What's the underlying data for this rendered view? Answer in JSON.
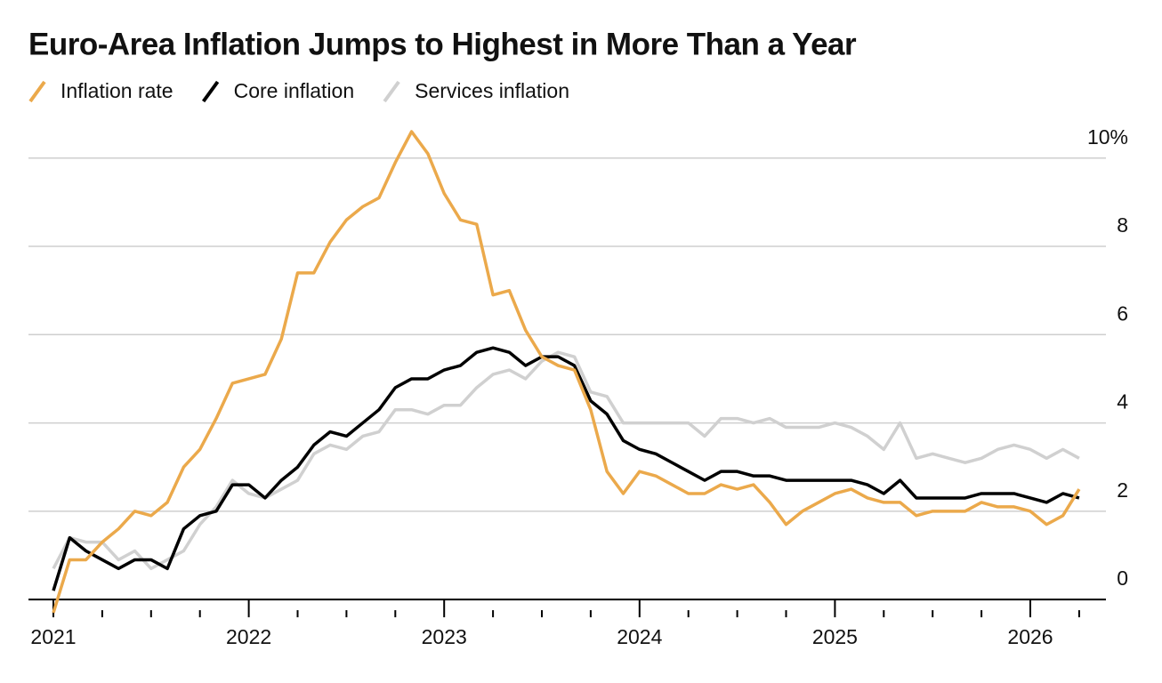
{
  "chart_data": {
    "type": "line",
    "title": "Euro-Area Inflation Jumps to Highest in More Than a Year",
    "categories": [
      "2021",
      null,
      null,
      null,
      null,
      null,
      null,
      null,
      null,
      null,
      null,
      null,
      "2022",
      null,
      null,
      null,
      null,
      null,
      null,
      null,
      null,
      null,
      null,
      null,
      "2023",
      null,
      null,
      null,
      null,
      null,
      null,
      null,
      null,
      null,
      null,
      null,
      "2024",
      null,
      null,
      null,
      null,
      null,
      null,
      null,
      null,
      null,
      null,
      null,
      "2025",
      null,
      null,
      null,
      null,
      null,
      null,
      null,
      null,
      null,
      null,
      null,
      "2026",
      null,
      null,
      null
    ],
    "series": [
      {
        "name": "Inflation rate",
        "color": "#eba94b",
        "values": [
          -0.3,
          0.9,
          0.9,
          1.3,
          1.6,
          2.0,
          1.9,
          2.2,
          3.0,
          3.4,
          4.1,
          4.9,
          5.0,
          5.1,
          5.9,
          7.4,
          7.4,
          8.1,
          8.6,
          8.9,
          9.1,
          9.9,
          10.6,
          10.1,
          9.2,
          8.6,
          8.5,
          6.9,
          7.0,
          6.1,
          5.5,
          5.3,
          5.2,
          4.3,
          2.9,
          2.4,
          2.9,
          2.8,
          2.6,
          2.4,
          2.4,
          2.6,
          2.5,
          2.6,
          2.2,
          1.7,
          2.0,
          2.2,
          2.4,
          2.5,
          2.3,
          2.2,
          2.2,
          1.9,
          2.0,
          2.0,
          2.0,
          2.2,
          2.1,
          2.1,
          2.0,
          1.7,
          1.9,
          2.5
        ]
      },
      {
        "name": "Core inflation",
        "color": "#000000",
        "values": [
          0.2,
          1.4,
          1.1,
          0.9,
          0.7,
          0.9,
          0.9,
          0.7,
          1.6,
          1.9,
          2.0,
          2.6,
          2.6,
          2.3,
          2.7,
          3.0,
          3.5,
          3.8,
          3.7,
          4.0,
          4.3,
          4.8,
          5.0,
          5.0,
          5.2,
          5.3,
          5.6,
          5.7,
          5.6,
          5.3,
          5.5,
          5.5,
          5.3,
          4.5,
          4.2,
          3.6,
          3.4,
          3.3,
          3.1,
          2.9,
          2.7,
          2.9,
          2.9,
          2.8,
          2.8,
          2.7,
          2.7,
          2.7,
          2.7,
          2.7,
          2.6,
          2.4,
          2.7,
          2.3,
          2.3,
          2.3,
          2.3,
          2.4,
          2.4,
          2.4,
          2.3,
          2.2,
          2.4,
          2.3
        ]
      },
      {
        "name": "Services inflation",
        "color": "#d0d0d0",
        "values": [
          0.7,
          1.4,
          1.3,
          1.3,
          0.9,
          1.1,
          0.7,
          0.9,
          1.1,
          1.7,
          2.1,
          2.7,
          2.4,
          2.3,
          2.5,
          2.7,
          3.3,
          3.5,
          3.4,
          3.7,
          3.8,
          4.3,
          4.3,
          4.2,
          4.4,
          4.4,
          4.8,
          5.1,
          5.2,
          5.0,
          5.4,
          5.6,
          5.5,
          4.7,
          4.6,
          4.0,
          4.0,
          4.0,
          4.0,
          4.0,
          3.7,
          4.1,
          4.1,
          4.0,
          4.1,
          3.9,
          3.9,
          3.9,
          4.0,
          3.9,
          3.7,
          3.4,
          4.0,
          3.2,
          3.3,
          3.2,
          3.1,
          3.2,
          3.4,
          3.5,
          3.4,
          3.2,
          3.4,
          3.2
        ]
      }
    ],
    "ylim": [
      -0.3,
      10.6
    ],
    "yticks": [
      0,
      2,
      4,
      6,
      8,
      {
        "value": 10,
        "label": "10%"
      }
    ],
    "grid": true,
    "legend": "top"
  }
}
